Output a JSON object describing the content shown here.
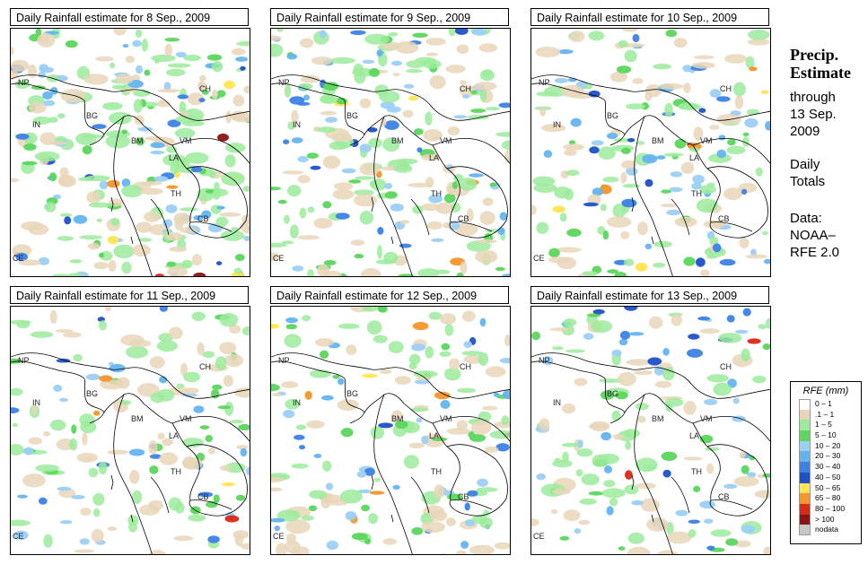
{
  "panels": [
    {
      "title": "Daily Rainfall estimate for  8 Sep., 2009",
      "seed": 8,
      "intensity": 1.0
    },
    {
      "title": "Daily Rainfall estimate for  9 Sep., 2009",
      "seed": 9,
      "intensity": 0.85
    },
    {
      "title": "Daily Rainfall estimate for  10 Sep., 2009",
      "seed": 10,
      "intensity": 0.7
    },
    {
      "title": "Daily Rainfall estimate for  11 Sep., 2009",
      "seed": 11,
      "intensity": 0.6
    },
    {
      "title": "Daily Rainfall estimate for  12 Sep., 2009",
      "seed": 12,
      "intensity": 0.65
    },
    {
      "title": "Daily Rainfall estimate for  13 Sep., 2009",
      "seed": 13,
      "intensity": 0.6
    }
  ],
  "country_labels": [
    {
      "code": "NP"
    },
    {
      "code": "CH"
    },
    {
      "code": "IN"
    },
    {
      "code": "BG"
    },
    {
      "code": "BM"
    },
    {
      "code": "VM"
    },
    {
      "code": "LA"
    },
    {
      "code": "TH"
    },
    {
      "code": "CB"
    },
    {
      "code": "CE"
    }
  ],
  "side": {
    "title_line1": "Precip.",
    "title_line2": "Estimate",
    "through": "through",
    "date_line1": "13 Sep.",
    "date_line2": "2009",
    "daily_line1": "Daily",
    "daily_line2": "Totals",
    "data_line1": "Data:",
    "data_line2": "NOAA–",
    "data_line3": "RFE 2.0"
  },
  "legend": {
    "title": "RFE (mm)",
    "items": [
      {
        "label": "0 – 1",
        "color": "#ffffff"
      },
      {
        "label": ".1 – 1",
        "color": "#e8d6b8"
      },
      {
        "label": "1 – 5",
        "color": "#9ceb9c"
      },
      {
        "label": "5 – 10",
        "color": "#5cd65c"
      },
      {
        "label": "10 – 20",
        "color": "#9cd0f5"
      },
      {
        "label": "20 – 30",
        "color": "#64b4f0"
      },
      {
        "label": "30 – 40",
        "color": "#3c82e6"
      },
      {
        "label": "40 – 50",
        "color": "#1e50c8"
      },
      {
        "label": "50 – 65",
        "color": "#ffe650"
      },
      {
        "label": "65 – 80",
        "color": "#f59628"
      },
      {
        "label": "80 – 100",
        "color": "#dc2814"
      },
      {
        "label": "> 100",
        "color": "#8c1414"
      },
      {
        "label": "nodata",
        "color": "#c8c8c8"
      }
    ]
  }
}
